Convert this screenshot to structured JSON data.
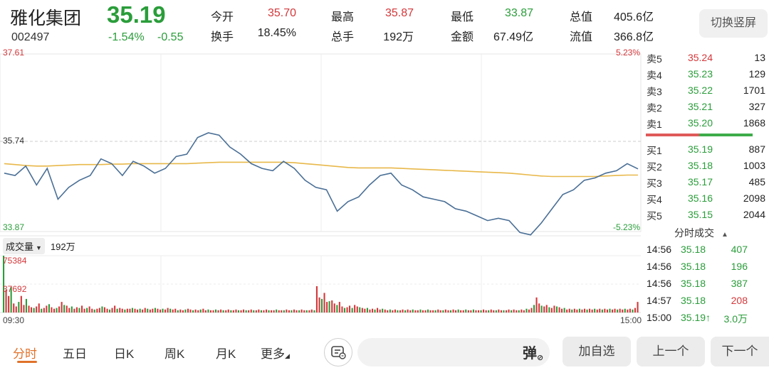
{
  "stock": {
    "name": "雅化集团",
    "code": "002497",
    "price": "35.19",
    "change_pct": "-1.54%",
    "change_amt": "-0.55"
  },
  "quote": {
    "open": {
      "label": "今开",
      "value": "35.70"
    },
    "turnover_rate": {
      "label": "换手",
      "value": "18.45%"
    },
    "high": {
      "label": "最高",
      "value": "35.87"
    },
    "total_hands": {
      "label": "总手",
      "value": "192万"
    },
    "low": {
      "label": "最低",
      "value": "33.87"
    },
    "amount": {
      "label": "金额",
      "value": "67.49亿"
    },
    "market_cap": {
      "label": "总值",
      "value": "405.6亿"
    },
    "float_cap": {
      "label": "流值",
      "value": "366.8亿"
    }
  },
  "switch_button": "切换竖屏",
  "chart_data": {
    "type": "line",
    "price_top": "37.61",
    "price_mid": "35.74",
    "price_bottom": "33.87",
    "pct_top": "5.23%",
    "pct_bottom": "-5.23%",
    "time_start": "09:30",
    "time_end": "15:00",
    "ylim": [
      33.87,
      37.61
    ],
    "prev_close": 35.74,
    "price_series": [
      35.1,
      35.05,
      35.25,
      34.85,
      35.2,
      34.55,
      34.8,
      34.95,
      35.05,
      35.4,
      35.3,
      35.05,
      35.35,
      35.25,
      35.1,
      35.2,
      35.45,
      35.5,
      35.85,
      35.95,
      35.9,
      35.65,
      35.5,
      35.3,
      35.2,
      35.15,
      35.35,
      35.2,
      34.95,
      34.8,
      34.75,
      34.3,
      34.5,
      34.6,
      34.85,
      35.05,
      35.1,
      34.85,
      34.75,
      34.6,
      34.55,
      34.5,
      34.35,
      34.3,
      34.2,
      34.1,
      34.15,
      34.1,
      33.85,
      33.8,
      34.05,
      34.35,
      34.65,
      34.75,
      34.95,
      35.0,
      35.1,
      35.15,
      35.3,
      35.19
    ],
    "avg_series": [
      35.3,
      35.28,
      35.26,
      35.25,
      35.25,
      35.26,
      35.27,
      35.28,
      35.28,
      35.28,
      35.29,
      35.29,
      35.3,
      35.3,
      35.3,
      35.3,
      35.3,
      35.3,
      35.31,
      35.32,
      35.33,
      35.33,
      35.33,
      35.33,
      35.33,
      35.33,
      35.33,
      35.32,
      35.3,
      35.28,
      35.26,
      35.24,
      35.22,
      35.21,
      35.21,
      35.21,
      35.21,
      35.2,
      35.19,
      35.18,
      35.17,
      35.16,
      35.15,
      35.14,
      35.13,
      35.12,
      35.11,
      35.1,
      35.08,
      35.06,
      35.04,
      35.03,
      35.03,
      35.03,
      35.03,
      35.03,
      35.04,
      35.05,
      35.06,
      35.06
    ],
    "volume_label": "成交量",
    "volume_total": "192万",
    "vol_max_label": "75384",
    "vol_mid_label": "37692",
    "vol_max": 75384,
    "volume_series": [
      75384,
      30000,
      22000,
      34000,
      12000,
      8000,
      14000,
      22000,
      10000,
      18000,
      9000,
      7000,
      6000,
      8000,
      12000,
      5000,
      6000,
      9000,
      11000,
      7000,
      5000,
      6000,
      8000,
      14000,
      10000,
      9000,
      6000,
      8000,
      5000,
      7000,
      6000,
      9000,
      5000,
      6000,
      8000,
      5000,
      4000,
      5000,
      6000,
      8000,
      7000,
      5000,
      4000,
      6000,
      9000,
      5000,
      6000,
      5000,
      4000,
      5000,
      5000,
      6000,
      5000,
      4000,
      5000,
      4000,
      6000,
      5000,
      4000,
      5000,
      6000,
      5000,
      4000,
      5000,
      4000,
      6000,
      5000,
      4000,
      5000,
      3000,
      4000,
      3000,
      4000,
      5000,
      4000,
      3000,
      4000,
      3000,
      4000,
      5000,
      3000,
      4000,
      3000,
      3000,
      4000,
      3000,
      4000,
      3000,
      3000,
      4000,
      3000,
      3000,
      4000,
      3000,
      3000,
      4000,
      3000,
      3000,
      4000,
      3000,
      3000,
      4000,
      3000,
      3000,
      4000,
      3000,
      3000,
      3000,
      4000,
      3000,
      3000,
      3000,
      4000,
      3000,
      3000,
      4000,
      3000,
      3000,
      4000,
      3000,
      3000,
      3000,
      4000,
      3000,
      35000,
      20000,
      18000,
      26000,
      14000,
      15000,
      16000,
      12000,
      10000,
      14000,
      8000,
      6000,
      7000,
      9000,
      6000,
      10000,
      8000,
      7000,
      6000,
      5000,
      6000,
      4000,
      5000,
      4000,
      6000,
      4000,
      5000,
      4000,
      3000,
      4000,
      3000,
      4000,
      3000,
      3000,
      4000,
      3000,
      4000,
      3000,
      4000,
      3000,
      3000,
      4000,
      3000,
      3000,
      4000,
      3000,
      3000,
      3000,
      4000,
      3000,
      3000,
      4000,
      3000,
      3000,
      4000,
      3000,
      4000,
      3000,
      3000,
      4000,
      3000,
      3000,
      4000,
      3000,
      3000,
      3000,
      4000,
      3000,
      3000,
      4000,
      3000,
      3000,
      4000,
      3000,
      3000,
      3000,
      4000,
      3000,
      4000,
      3000,
      3000,
      4000,
      3000,
      5000,
      4000,
      6000,
      10000,
      20000,
      12000,
      9000,
      8000,
      10000,
      7000,
      6000,
      9000,
      8000,
      7000,
      5000,
      6000,
      4000,
      5000,
      4000,
      5000,
      4000,
      5000,
      4000,
      5000,
      4000,
      5000,
      4000,
      5000,
      4000,
      5000,
      4000,
      5000,
      4000,
      5000,
      4000,
      5000,
      4000,
      5000,
      4000,
      5000,
      4000,
      5000,
      4000,
      6000,
      14000
    ]
  },
  "order_book": {
    "asks": [
      {
        "label": "卖5",
        "price": "35.24",
        "volume": "13"
      },
      {
        "label": "卖4",
        "price": "35.23",
        "volume": "129"
      },
      {
        "label": "卖3",
        "price": "35.22",
        "volume": "1701"
      },
      {
        "label": "卖2",
        "price": "35.21",
        "volume": "327"
      },
      {
        "label": "卖1",
        "price": "35.20",
        "volume": "1868"
      }
    ],
    "bids": [
      {
        "label": "买1",
        "price": "35.19",
        "volume": "887"
      },
      {
        "label": "买2",
        "price": "35.18",
        "volume": "1003"
      },
      {
        "label": "买3",
        "price": "35.17",
        "volume": "485"
      },
      {
        "label": "买4",
        "price": "35.16",
        "volume": "2098"
      },
      {
        "label": "买5",
        "price": "35.15",
        "volume": "2044"
      }
    ]
  },
  "trades": {
    "title": "分时成交",
    "sort_icon": "▲",
    "rows": [
      {
        "time": "14:56",
        "price": "35.18",
        "volume": "407",
        "dir": "sell"
      },
      {
        "time": "14:56",
        "price": "35.18",
        "volume": "196",
        "dir": "sell"
      },
      {
        "time": "14:56",
        "price": "35.18",
        "volume": "387",
        "dir": "sell"
      },
      {
        "time": "14:57",
        "price": "35.18",
        "volume": "208",
        "dir": "buy"
      },
      {
        "time": "15:00",
        "price": "35.19↑",
        "volume": "3.0万",
        "dir": "sell"
      }
    ]
  },
  "toolbar": {
    "tabs": [
      "分时",
      "五日",
      "日K",
      "周K",
      "月K",
      "更多"
    ],
    "comment_placeholder": "",
    "danmu_label": "弹",
    "add_watch": "加自选",
    "prev": "上一个",
    "next": "下一个"
  },
  "colors": {
    "up": "#d4373a",
    "down": "#2a9d3a",
    "price_line": "#4a6f96",
    "avg_line": "#e8b84a",
    "accent": "#e0722a"
  }
}
